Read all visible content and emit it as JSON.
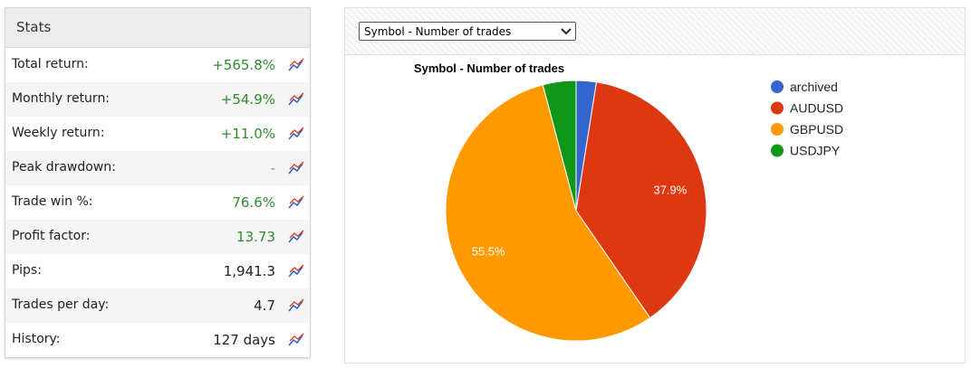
{
  "stats": {
    "title": "Stats",
    "rows": [
      {
        "label": "Total return:",
        "value": "+565.8%",
        "color": "#2e8b2e"
      },
      {
        "label": "Monthly return:",
        "value": "+54.9%",
        "color": "#2e8b2e"
      },
      {
        "label": "Weekly return:",
        "value": "+11.0%",
        "color": "#2e8b2e"
      },
      {
        "label": "Peak drawdown:",
        "value": "-",
        "color": "#888888"
      },
      {
        "label": "Trade win %:",
        "value": "76.6%",
        "color": "#2e8b2e"
      },
      {
        "label": "Profit factor:",
        "value": "13.73",
        "color": "#2e8b2e"
      },
      {
        "label": "Pips:",
        "value": "1,941.3",
        "color": "#222222"
      },
      {
        "label": "Trades per day:",
        "value": "4.7",
        "color": "#222222"
      },
      {
        "label": "History:",
        "value": "127 days",
        "color": "#222222"
      }
    ]
  },
  "selector": {
    "selected": "Symbol - Number of trades"
  },
  "chart_data": {
    "type": "pie",
    "title": "Symbol - Number of trades",
    "categories": [
      "archived",
      "AUDUSD",
      "GBPUSD",
      "USDJPY"
    ],
    "values": [
      2.5,
      37.9,
      55.5,
      4.1
    ],
    "value_labels": [
      null,
      "37.9%",
      "55.5%",
      null
    ],
    "colors": [
      "#3366cc",
      "#dc3912",
      "#ff9900",
      "#109618"
    ],
    "legend": "right"
  }
}
